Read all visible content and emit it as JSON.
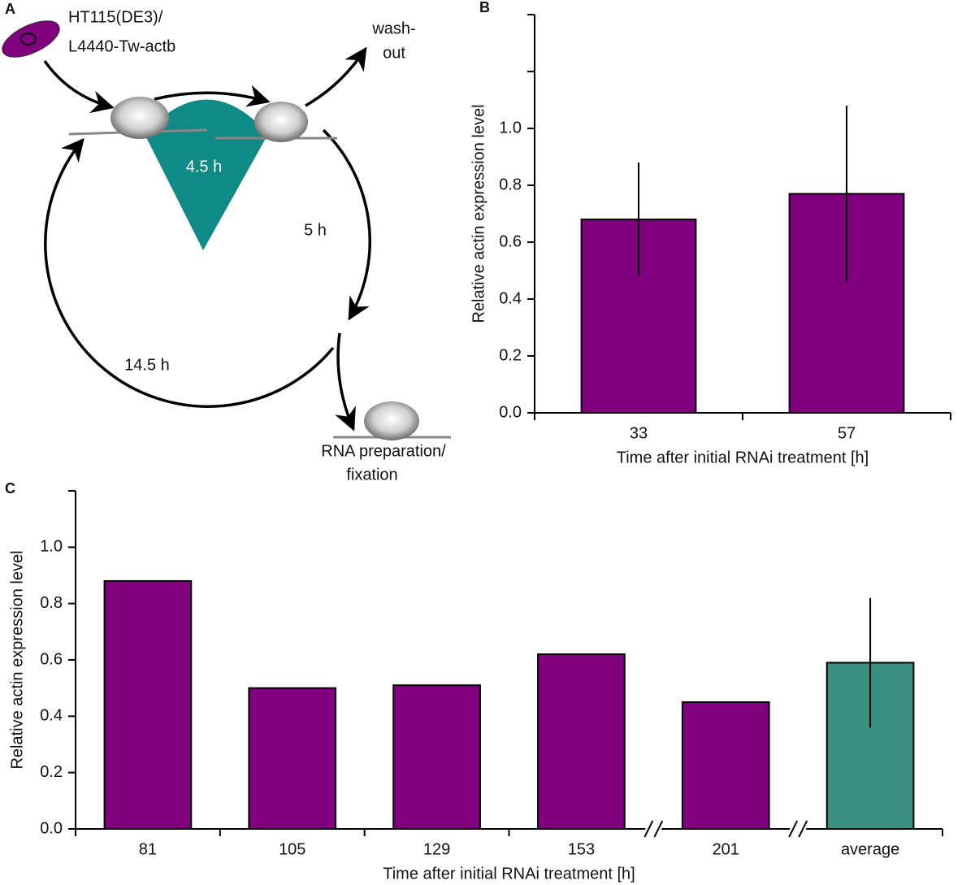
{
  "panel_a": {
    "label": "A",
    "strain": [
      "HT115(DE3)/",
      "L4440-Tw-actb"
    ],
    "washout": [
      "wash-",
      "out"
    ],
    "t1": "4.5 h",
    "t2": "5 h",
    "t3": "14.5 h",
    "endpoint": [
      "RNA preparation/",
      "fixation"
    ]
  },
  "chart_data": [
    {
      "type": "bar",
      "panel_label": "B",
      "categories": [
        "33",
        "57"
      ],
      "values": [
        0.68,
        0.77
      ],
      "errors": [
        0.2,
        0.31
      ],
      "colors": [
        "#800080",
        "#800080"
      ],
      "ylabel": "Relative actin expression level",
      "xlabel": "Time after initial RNAi treatment [h]",
      "ylim": [
        0,
        1.4
      ],
      "yticks": [
        {
          "value": 0,
          "label": "0.0"
        },
        0.2,
        0.4,
        0.6,
        0.8,
        {
          "value": 1,
          "label": "1.0"
        }
      ],
      "yticks_unlabeled": [
        1.2,
        1.4
      ]
    },
    {
      "type": "bar",
      "panel_label": "C",
      "categories": [
        "81",
        "105",
        "129",
        "153",
        "201",
        "average"
      ],
      "values": [
        0.88,
        0.5,
        0.51,
        0.62,
        0.45,
        0.59
      ],
      "errors": [
        null,
        null,
        null,
        null,
        null,
        0.23
      ],
      "colors": [
        "#800080",
        "#800080",
        "#800080",
        "#800080",
        "#800080",
        "#3a9080"
      ],
      "ylabel": "Relative actin expression level",
      "xlabel": "Time after initial RNAi treatment [h]",
      "ylim": [
        0,
        1.2
      ],
      "yticks": [
        {
          "value": 0,
          "label": "0.0"
        },
        0.2,
        0.4,
        0.6,
        0.8,
        {
          "value": 1,
          "label": "1.0"
        }
      ],
      "yticks_unlabeled": [
        1.2
      ],
      "axis_breaks": [
        3,
        4
      ]
    }
  ]
}
